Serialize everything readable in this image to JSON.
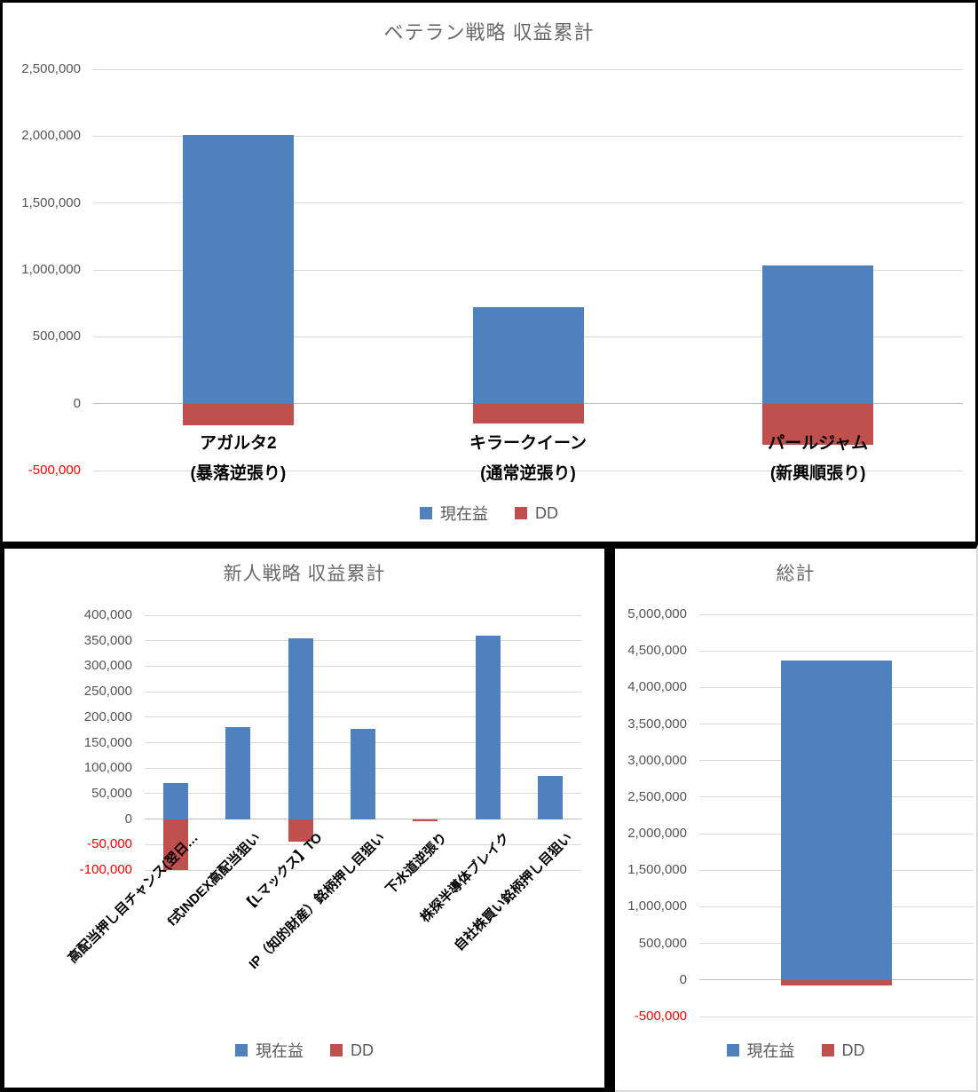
{
  "colors": {
    "profit_blue": "#4E81BD",
    "dd_red": "#C0504D",
    "gridline": "#D9D9D9",
    "negative_tick": "#FF0000",
    "tick_gray": "#555555",
    "title_gray": "#686868"
  },
  "chart_data": [
    {
      "type": "bar",
      "title": "ベテラン戦略 収益累計",
      "categories": [
        "アガルタ2\n(暴落逆張り)",
        "キラークイーン\n(通常逆張り)",
        "パールジャム\n(新興順張り)"
      ],
      "series": [
        {
          "name": "現在益",
          "color": "#4E81BD",
          "values": [
            2010000,
            720000,
            1030000
          ]
        },
        {
          "name": "DD",
          "color": "#C0504D",
          "values": [
            -160000,
            -150000,
            -310000
          ]
        }
      ],
      "ylim": [
        -500000,
        2500000
      ],
      "ystep": 500000,
      "grid": true,
      "legend_position": "bottom"
    },
    {
      "type": "bar",
      "title": "新人戦略 収益累計",
      "categories": [
        "高配当押し目チャンス(翌日…",
        "f式INDEX高配当狙い",
        "【Lマックス】TO",
        "IP（知的財産）銘柄押し目狙い",
        "下水道逆張り",
        "株探半導体ブレイク",
        "自社株買い銘柄押し目狙い"
      ],
      "series": [
        {
          "name": "現在益",
          "color": "#4E81BD",
          "values": [
            70000,
            180000,
            355000,
            177000,
            0,
            360000,
            85000
          ]
        },
        {
          "name": "DD",
          "color": "#C0504D",
          "values": [
            -100000,
            0,
            -45000,
            0,
            -3000,
            0,
            0
          ]
        }
      ],
      "ylim": [
        -100000,
        400000
      ],
      "ystep": 50000,
      "grid": true,
      "legend_position": "bottom"
    },
    {
      "type": "bar",
      "title": "総計",
      "categories": [
        ""
      ],
      "series": [
        {
          "name": "現在益",
          "color": "#4E81BD",
          "values": [
            4370000
          ]
        },
        {
          "name": "DD",
          "color": "#C0504D",
          "values": [
            -80000
          ]
        }
      ],
      "ylim": [
        -500000,
        5000000
      ],
      "ystep": 500000,
      "grid": true,
      "legend_position": "bottom"
    }
  ]
}
